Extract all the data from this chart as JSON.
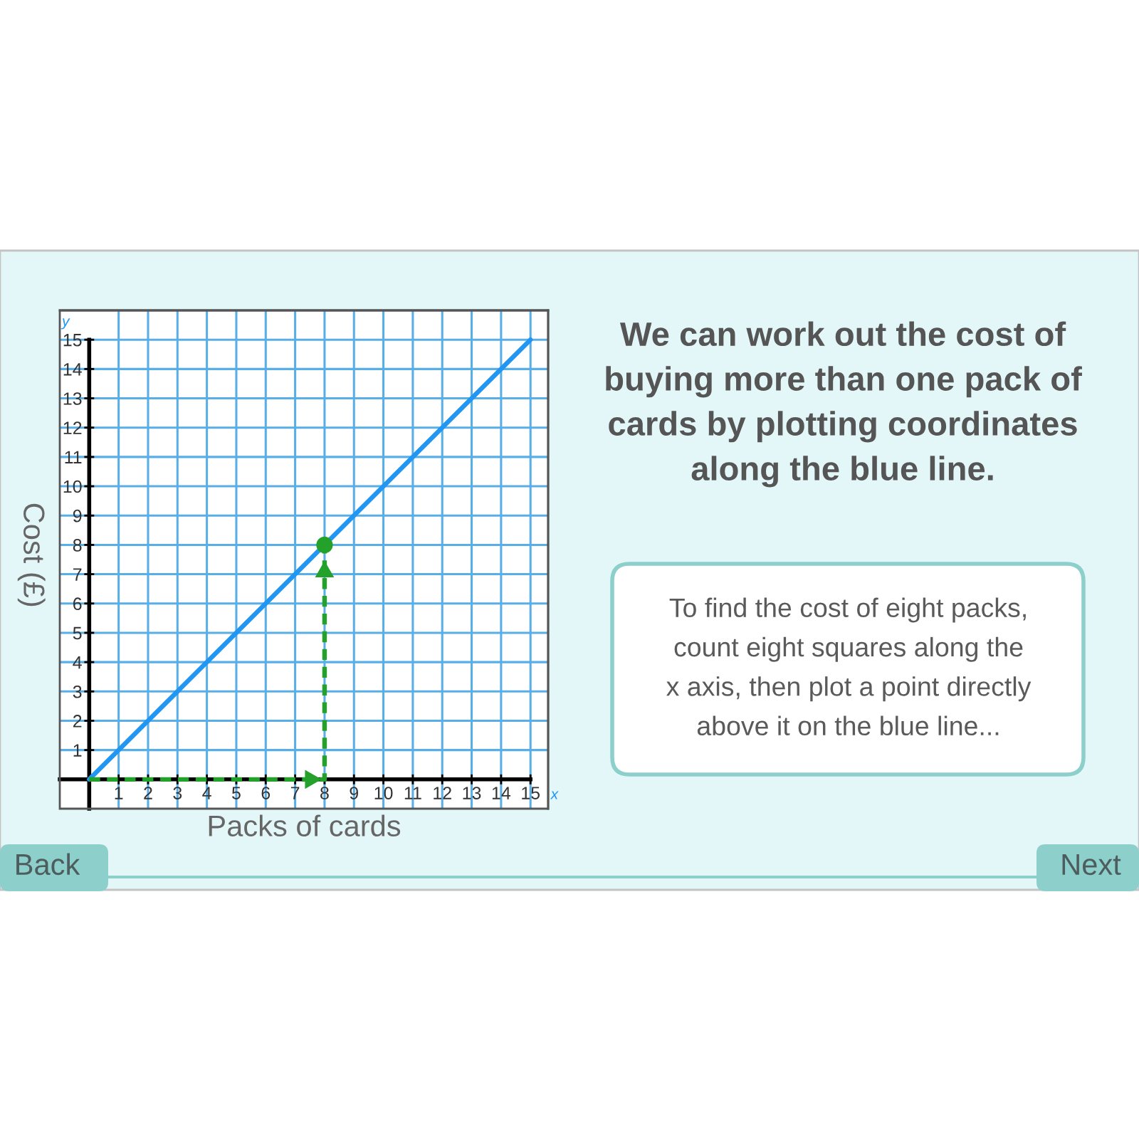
{
  "chart_data": {
    "type": "line",
    "title": "We can work out the cost of\nbuying more than one pack of\ncards by plotting coordinates\nalong the blue line.",
    "xlabel": "Packs of cards",
    "ylabel": "Cost (£)",
    "annotations": [
      "To find the cost of eight packs,\ncount eight squares along the\nx axis, then plot a point directly\nabove it on the blue line...",
      "Back",
      "Next",
      "y",
      "x"
    ],
    "series": [
      {
        "color": "#2196f3",
        "x": [
          0,
          15
        ],
        "values": [
          0,
          15
        ]
      },
      {
        "color": "#23a12a",
        "line_style": "dashed",
        "x": [
          0,
          8,
          8
        ],
        "values": [
          0,
          0,
          8
        ]
      },
      {
        "type": "scatter",
        "color": "#23a12a",
        "marker": "circle",
        "x": [
          8
        ],
        "values": [
          8
        ]
      }
    ],
    "xlim": [
      -1,
      15.6
    ],
    "ylim": [
      -1,
      16
    ],
    "xticks": [
      1,
      2,
      3,
      4,
      5,
      6,
      7,
      8,
      9,
      10,
      11,
      12,
      13,
      14,
      15
    ],
    "yticks": [
      1,
      2,
      3,
      4,
      5,
      6,
      7,
      8,
      9,
      10,
      11,
      12,
      13,
      14,
      15
    ],
    "grid": true
  }
}
